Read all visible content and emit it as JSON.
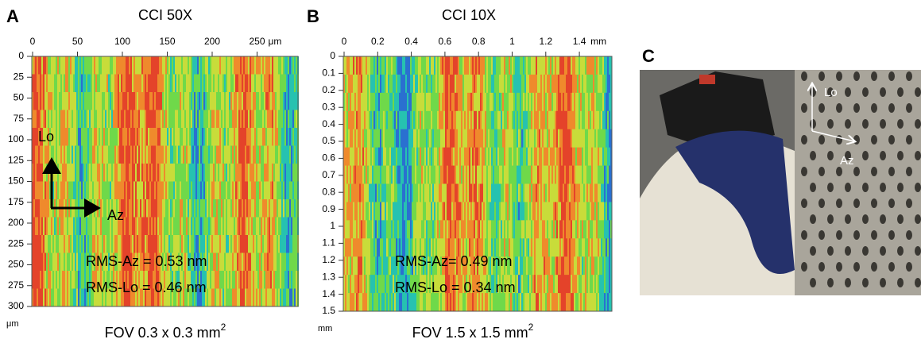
{
  "panels": [
    {
      "letter": "A",
      "title": "CCI 50X",
      "x_ticks": [
        "0",
        "50",
        "100",
        "150",
        "200",
        "250"
      ],
      "x_unit": "μm",
      "y_ticks": [
        "0",
        "25",
        "50",
        "75",
        "100",
        "125",
        "150",
        "175",
        "200",
        "225",
        "250",
        "275",
        "300"
      ],
      "y_unit": "μm",
      "lo": "Lo",
      "az": "Az",
      "rms_az": "RMS-Az = 0.53 nm",
      "rms_lo": "RMS-Lo = 0.46 nm",
      "fov": "FOV 0.3 x 0.3 mm",
      "fov_exponent": "2"
    },
    {
      "letter": "B",
      "title": "CCI 10X",
      "x_ticks": [
        "0",
        "0.2",
        "0.4",
        "0.6",
        "0.8",
        "1",
        "1.2",
        "1.4"
      ],
      "x_unit": "mm",
      "y_ticks": [
        "0",
        "0.1",
        "0.2",
        "0.3",
        "0.4",
        "0.5",
        "0.6",
        "0.7",
        "0.8",
        "0.9",
        "1",
        "1.1",
        "1.2",
        "1.3",
        "1.4",
        "1.5"
      ],
      "y_unit": "mm",
      "rms_az": "RMS-Az= 0.49 nm",
      "rms_lo": "RMS-Lo = 0.34 nm",
      "fov": "FOV 1.5 x 1.5 mm",
      "fov_exponent": "2"
    }
  ],
  "photo": {
    "letter": "C",
    "lo": "Lo",
    "az": "Az"
  }
}
